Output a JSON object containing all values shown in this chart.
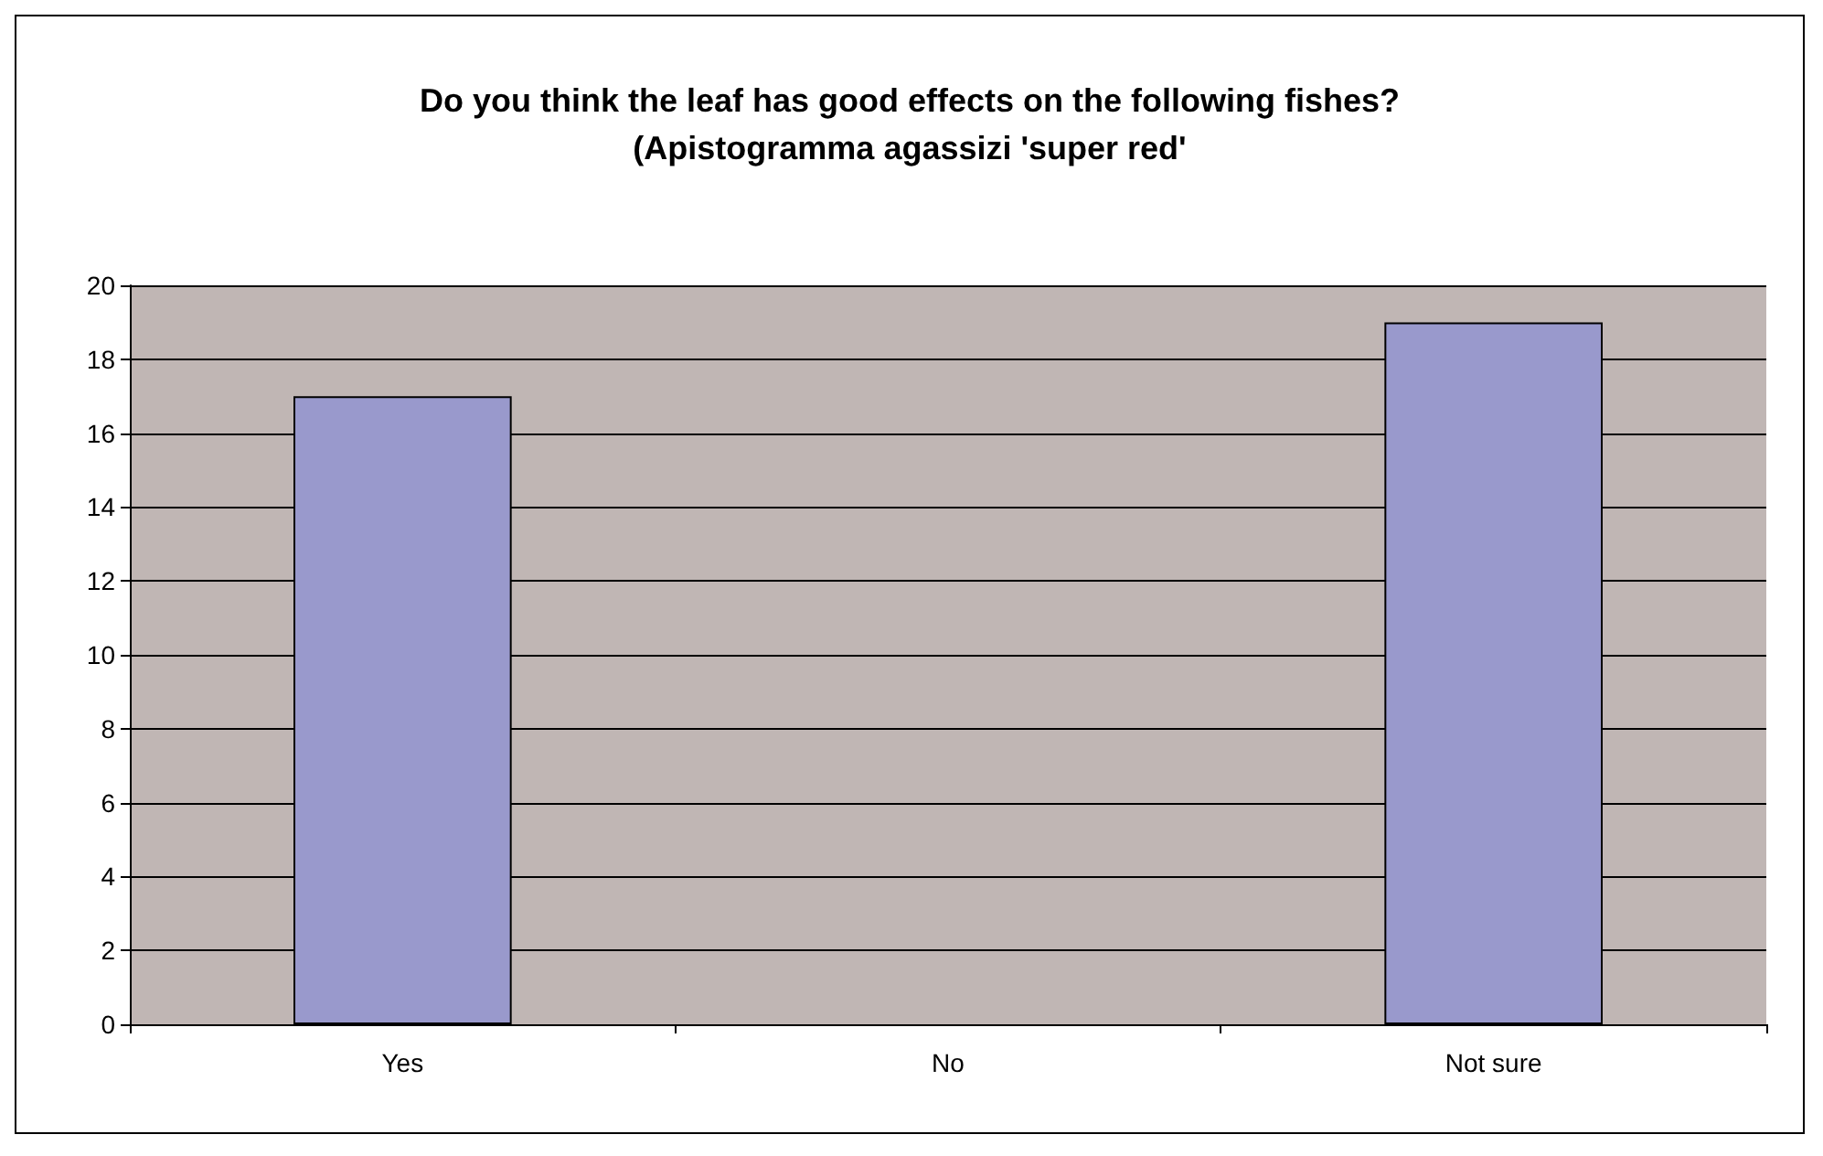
{
  "chart_data": {
    "type": "bar",
    "title": "Do you think the leaf has good effects on the following fishes?(Apistogramma agassizi 'super red'",
    "categories": [
      "Yes",
      "No",
      "Not sure"
    ],
    "values": [
      17,
      0,
      19
    ],
    "color": "#9999cc",
    "ylim": [
      0,
      20
    ],
    "yticks": [
      0,
      2,
      4,
      6,
      8,
      10,
      12,
      14,
      16,
      18,
      20
    ],
    "grid": "y"
  }
}
